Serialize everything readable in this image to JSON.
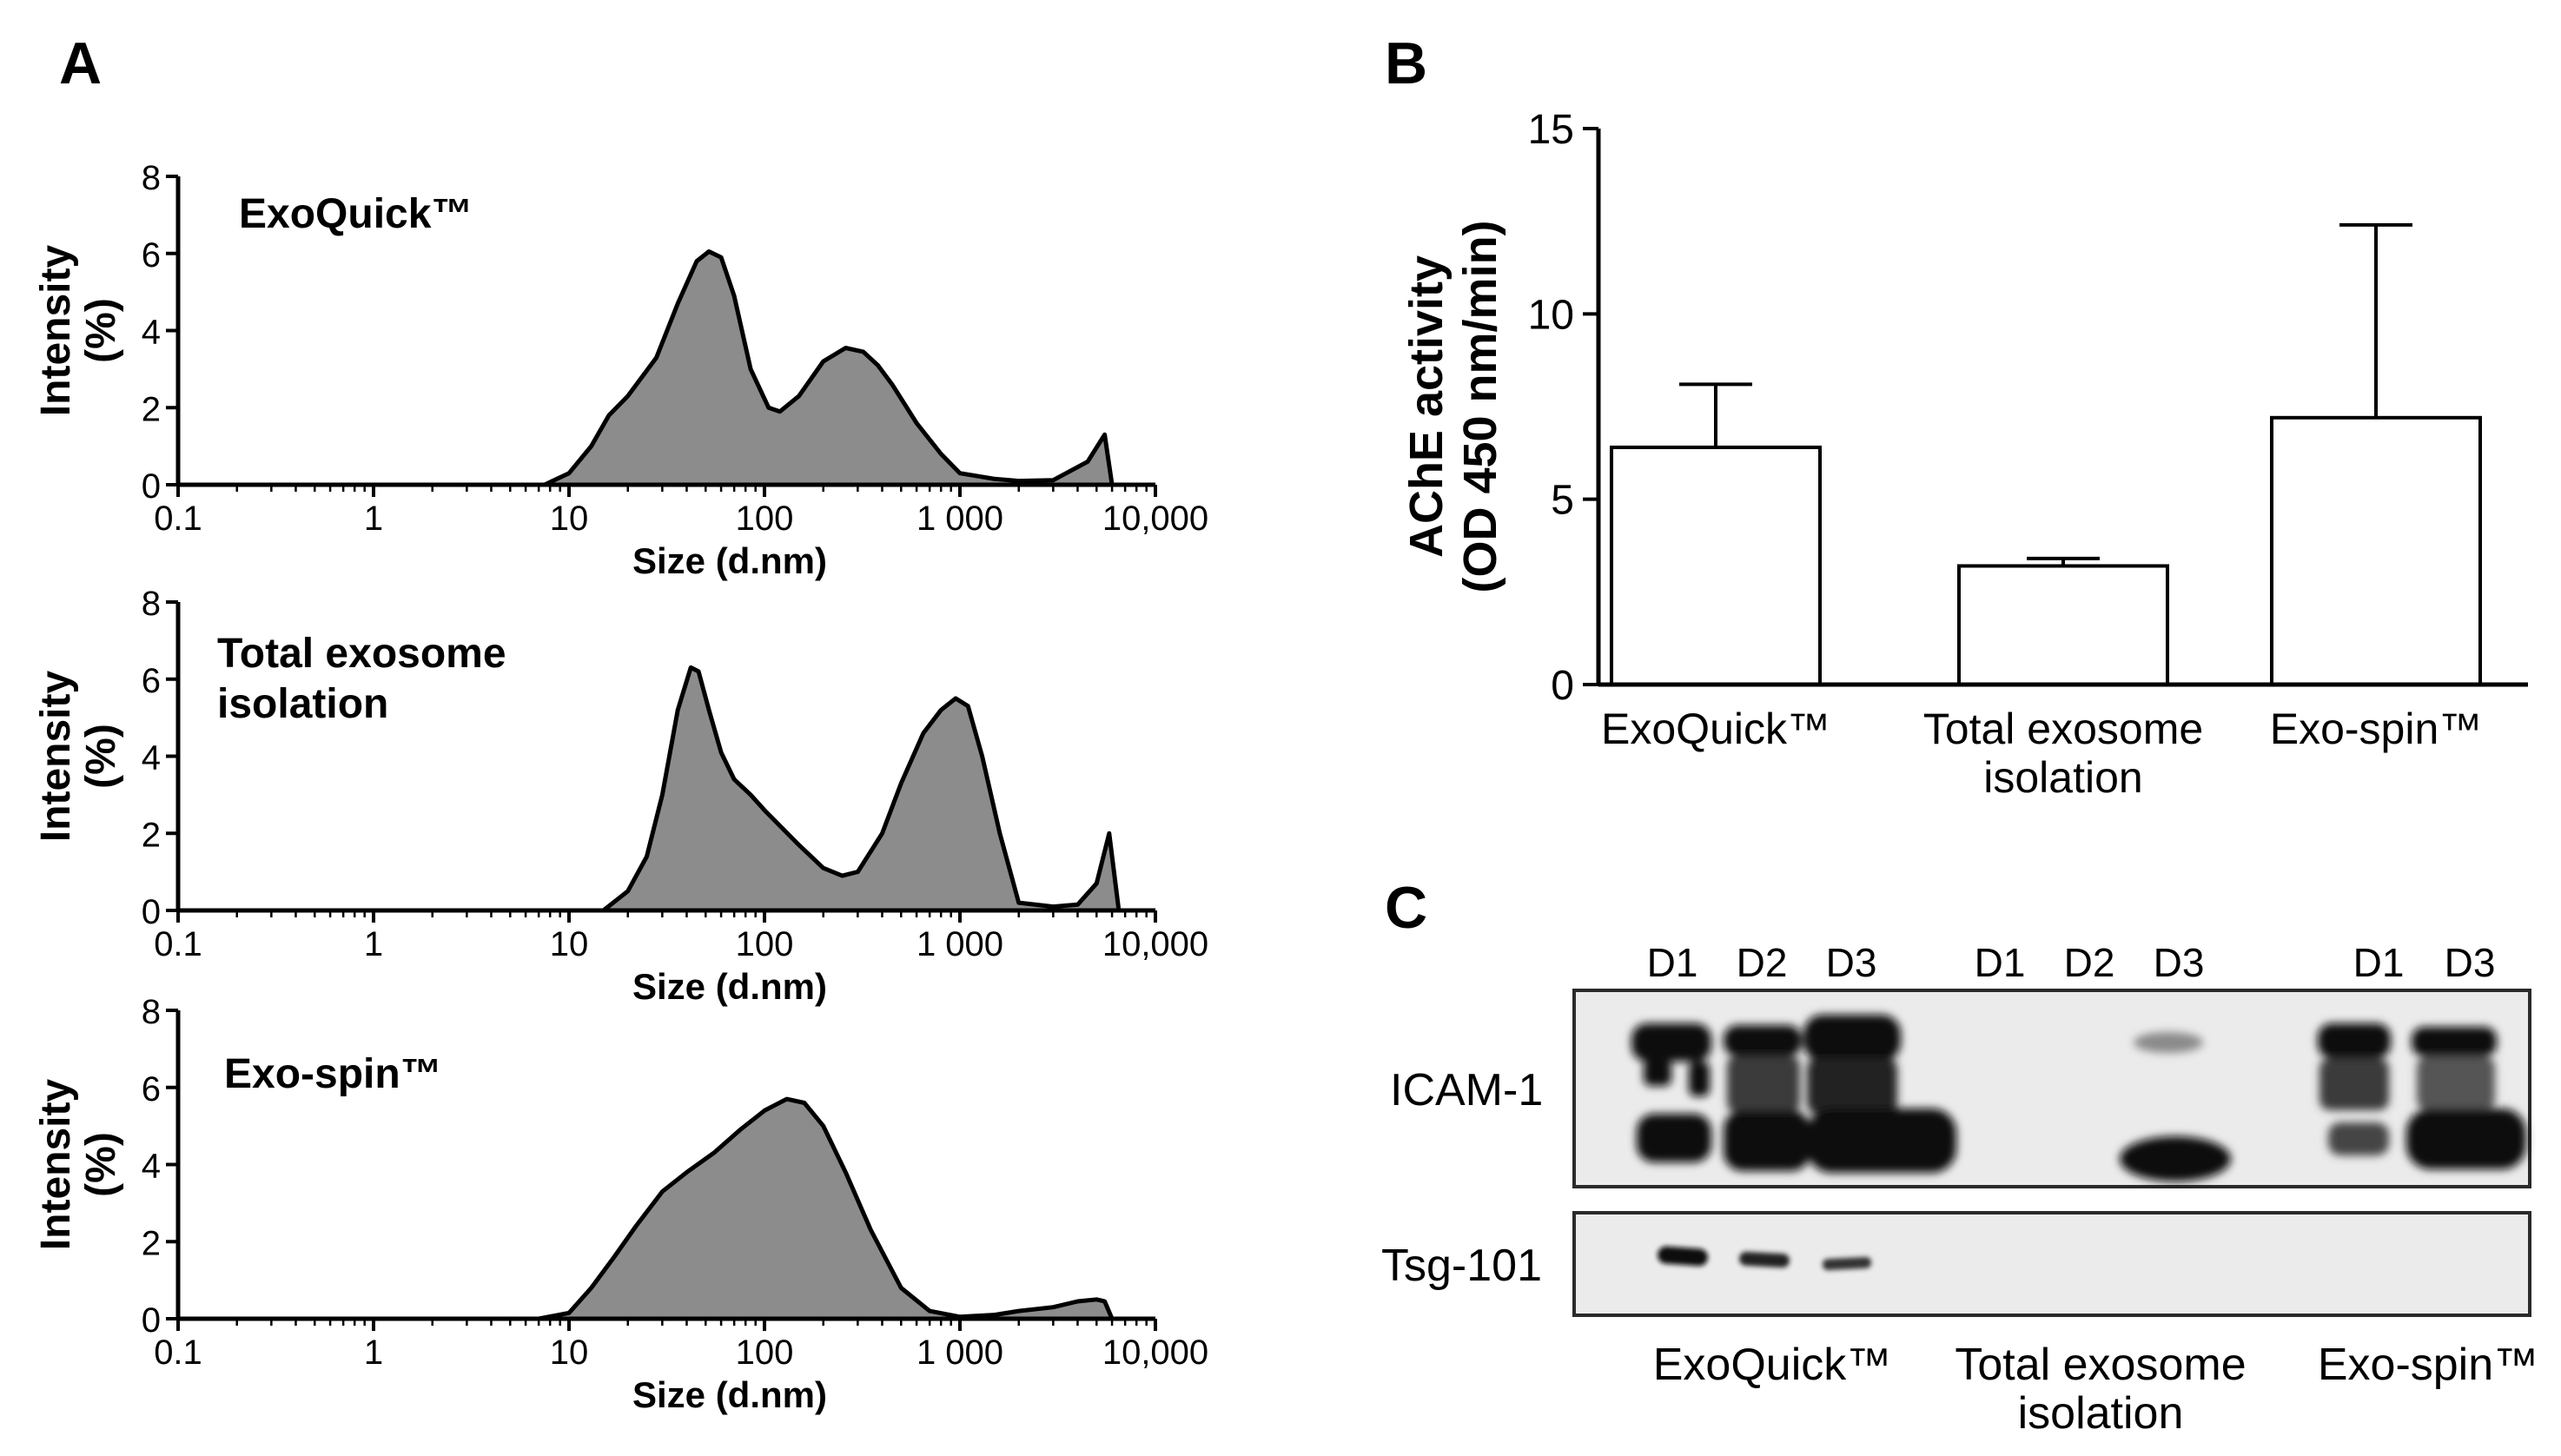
{
  "panels": {
    "a": "A",
    "b": "B",
    "c": "C"
  },
  "chart_data": [
    {
      "type": "area",
      "panel": "A",
      "title": "ExoQuick™",
      "xlabel": "Size (d.nm)",
      "ylabel": [
        "Intensity",
        "(%)"
      ],
      "xscale": "log",
      "xlim": [
        0.1,
        10000
      ],
      "ylim": [
        0,
        8
      ],
      "xticks": [
        "0.1",
        "1",
        "10",
        "100",
        "1 000",
        "10,000"
      ],
      "yticks": [
        "0",
        "2",
        "4",
        "6",
        "8"
      ],
      "series": [
        {
          "name": "ExoQuick",
          "x": [
            7.5,
            10,
            13,
            16,
            20,
            28,
            36,
            45,
            52,
            60,
            70,
            85,
            105,
            120,
            150,
            200,
            260,
            320,
            380,
            450,
            600,
            800,
            1000,
            1500,
            2000,
            3000,
            4500,
            5500,
            6000
          ],
          "y": [
            0,
            0.3,
            1.0,
            1.8,
            2.3,
            3.3,
            4.7,
            5.8,
            6.05,
            5.9,
            4.9,
            3.0,
            2.0,
            1.9,
            2.3,
            3.2,
            3.55,
            3.45,
            3.1,
            2.6,
            1.6,
            0.8,
            0.3,
            0.15,
            0.1,
            0.12,
            0.6,
            1.3,
            0
          ]
        }
      ]
    },
    {
      "type": "area",
      "panel": "A",
      "title": "Total exosome isolation",
      "xlabel": "Size (d.nm)",
      "ylabel": [
        "Intensity",
        "(%)"
      ],
      "xscale": "log",
      "xlim": [
        0.1,
        10000
      ],
      "ylim": [
        0,
        8
      ],
      "xticks": [
        "0.1",
        "1",
        "10",
        "100",
        "1 000",
        "10,000"
      ],
      "yticks": [
        "0",
        "2",
        "4",
        "6",
        "8"
      ],
      "series": [
        {
          "name": "Total exosome isolation",
          "x": [
            15,
            20,
            25,
            30,
            36,
            42,
            46,
            52,
            60,
            70,
            85,
            100,
            150,
            200,
            250,
            300,
            400,
            500,
            650,
            800,
            950,
            1100,
            1300,
            1600,
            2000,
            3000,
            4000,
            5000,
            5800,
            6500
          ],
          "y": [
            0,
            0.5,
            1.4,
            3.0,
            5.2,
            6.3,
            6.2,
            5.2,
            4.1,
            3.4,
            3.0,
            2.6,
            1.7,
            1.1,
            0.9,
            1.0,
            2.0,
            3.3,
            4.6,
            5.2,
            5.5,
            5.3,
            4.0,
            2.0,
            0.2,
            0.1,
            0.15,
            0.7,
            2.0,
            0
          ]
        }
      ]
    },
    {
      "type": "area",
      "panel": "A",
      "title": "Exo-spin™",
      "xlabel": "Size (d.nm)",
      "ylabel": [
        "Intensity",
        "(%)"
      ],
      "xscale": "log",
      "xlim": [
        0.1,
        10000
      ],
      "ylim": [
        0,
        8
      ],
      "xticks": [
        "0.1",
        "1",
        "10",
        "100",
        "1 000",
        "10,000"
      ],
      "yticks": [
        "0",
        "2",
        "4",
        "6",
        "8"
      ],
      "series": [
        {
          "name": "Exo-spin",
          "x": [
            7,
            10,
            13,
            17,
            22,
            30,
            40,
            55,
            75,
            100,
            130,
            160,
            200,
            260,
            350,
            500,
            700,
            1000,
            1500,
            2000,
            3000,
            4000,
            5000,
            5500,
            6000
          ],
          "y": [
            0,
            0.15,
            0.8,
            1.6,
            2.4,
            3.3,
            3.8,
            4.3,
            4.9,
            5.4,
            5.7,
            5.6,
            5.0,
            3.8,
            2.3,
            0.8,
            0.2,
            0.05,
            0.1,
            0.2,
            0.3,
            0.45,
            0.5,
            0.45,
            0
          ]
        }
      ]
    },
    {
      "type": "bar",
      "panel": "B",
      "categories": [
        "ExoQuick™",
        "Total exosome isolation",
        "Exo-spin™"
      ],
      "category_lines": [
        [
          "ExoQuick™"
        ],
        [
          "Total exosome",
          "isolation"
        ],
        [
          "Exo-spin™"
        ]
      ],
      "values": [
        6.4,
        3.2,
        7.2
      ],
      "errors": [
        1.7,
        0.2,
        5.2
      ],
      "ylabel": [
        "AChE activity",
        "(OD 450 nm/min)"
      ],
      "ylim": [
        0,
        15
      ],
      "yticks": [
        "0",
        "5",
        "10",
        "15"
      ]
    }
  ],
  "blot": {
    "lane_labels": [
      "D1",
      "D2",
      "D3",
      "D1",
      "D2",
      "D3",
      "D1",
      "D3"
    ],
    "rows": [
      "ICAM-1",
      "Tsg-101"
    ],
    "groups": [
      [
        "ExoQuick™"
      ],
      [
        "Total exosome",
        "isolation"
      ],
      [
        "Exo-spin™"
      ]
    ]
  }
}
